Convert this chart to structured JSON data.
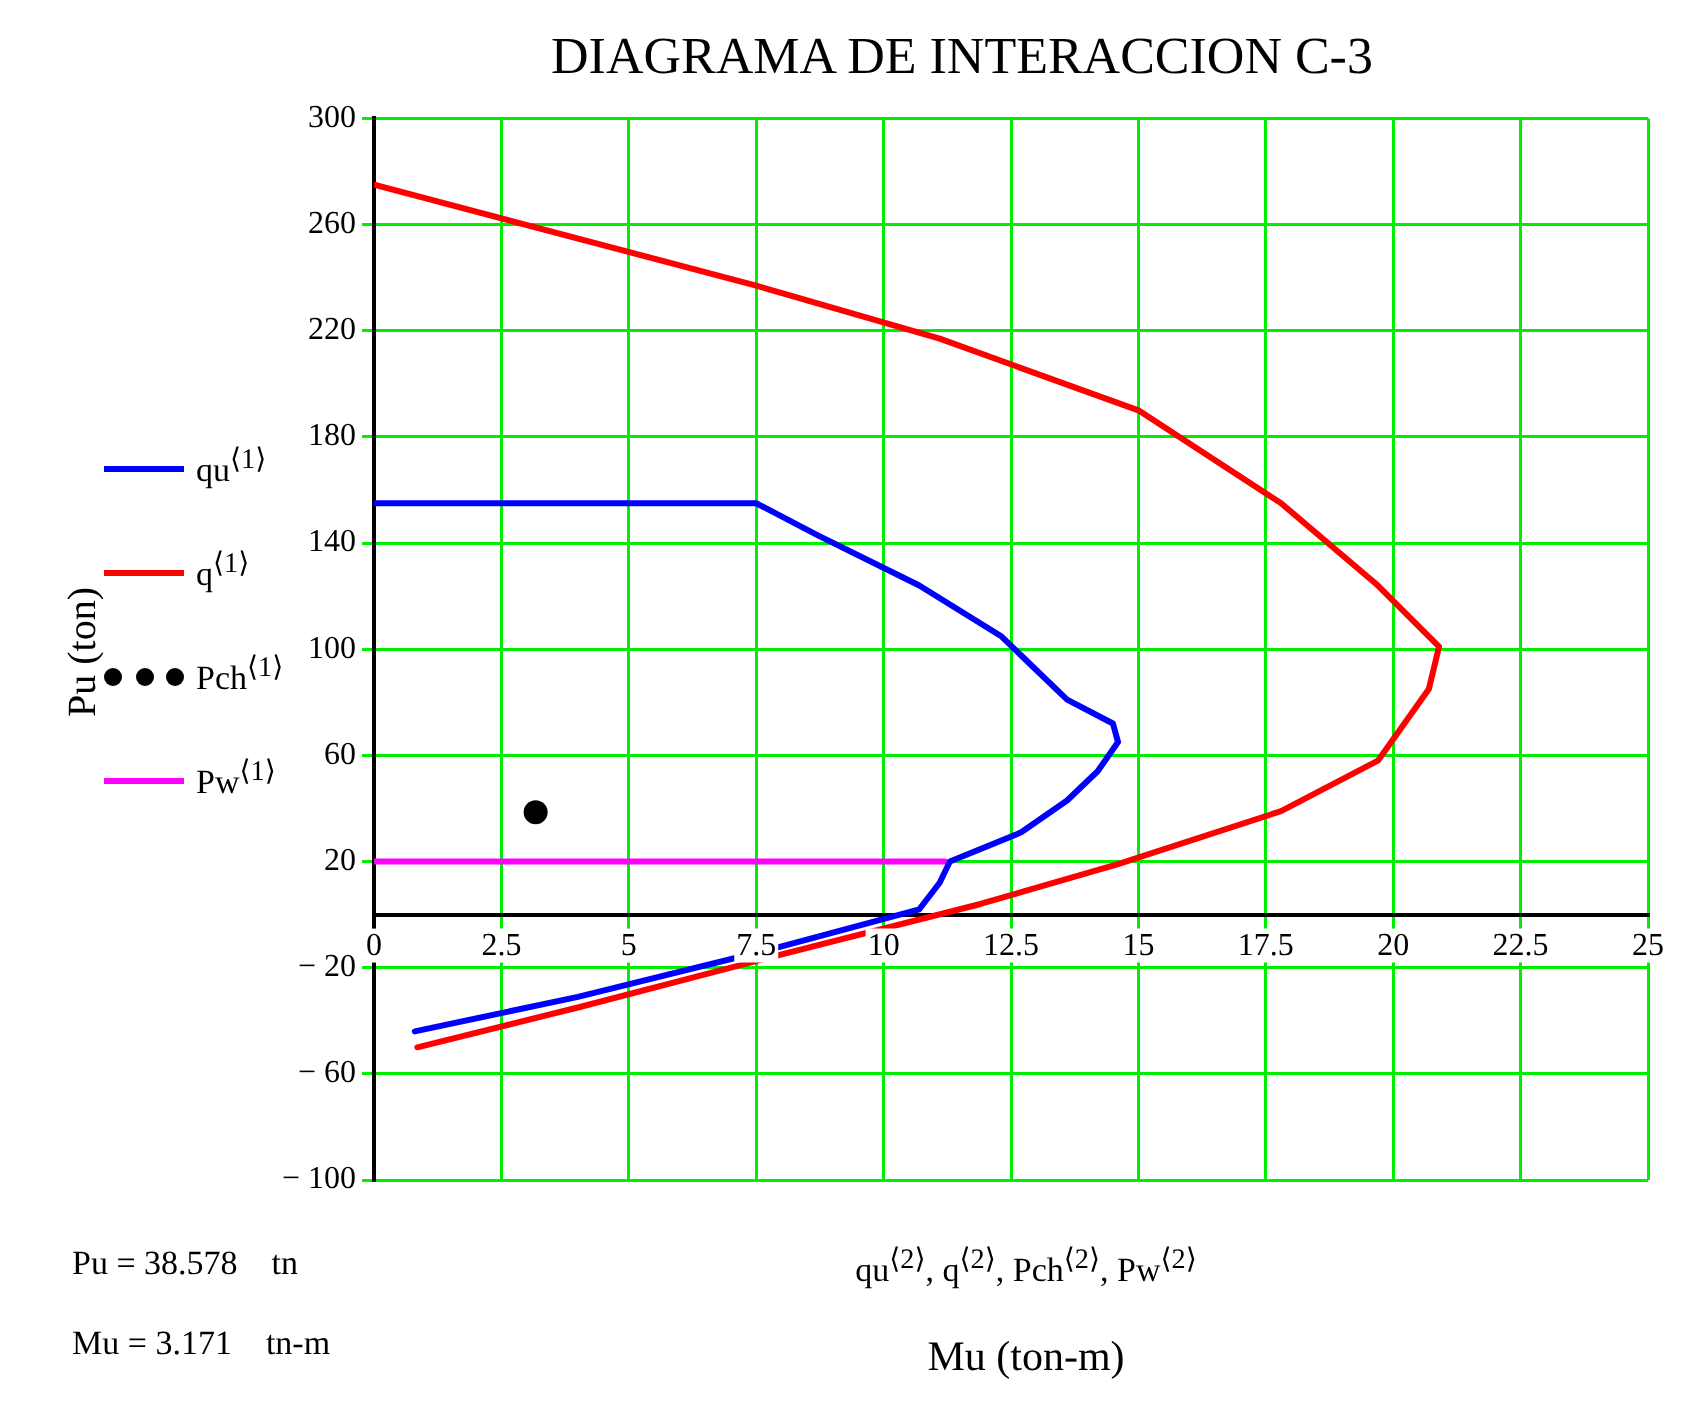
{
  "chart_data": {
    "type": "line",
    "title": "DIAGRAMA DE INTERACCION C-3",
    "xlabel": "Mu (ton-m)",
    "ylabel": "Pu (ton)",
    "annotations": [
      "Pu = 38.578    tn",
      "Mu = 3.171    tn-m",
      "qu$^{⟨2⟩}$, q$^{⟨2⟩}$, Pch$^{⟨2⟩}$, Pw$^{⟨2⟩}$"
    ],
    "xlim": [
      0,
      25
    ],
    "xticks": [
      0,
      2.5,
      5,
      7.5,
      10,
      12.5,
      15,
      17.5,
      20,
      22.5,
      25
    ],
    "ylim": [
      -100,
      300
    ],
    "yticks": [
      {
        "value": -100,
        "label": "− 100"
      },
      {
        "value": -60,
        "label": "− 60"
      },
      {
        "value": -20,
        "label": "− 20"
      },
      20,
      60,
      100,
      140,
      180,
      220,
      260,
      300
    ],
    "grid": true,
    "legend": "left",
    "line_style": "solid",
    "series": [
      {
        "name": "qu$^{⟨1⟩}$",
        "type": "line",
        "color": "#0000ff",
        "x": [
          0.8,
          4,
          8,
          10.7,
          11.1,
          11.3,
          12.7,
          13.6,
          14.2,
          14.6,
          14.5,
          13.6,
          12.3,
          10.7,
          8.7,
          7.5,
          0
        ],
        "values": [
          -44,
          -31,
          -12,
          2,
          12,
          20,
          31,
          43,
          54,
          65,
          72,
          81,
          105,
          124,
          143,
          155,
          155
        ]
      },
      {
        "name": "q$^{⟨1⟩}$",
        "type": "line",
        "color": "#ff0000",
        "x": [
          0.85,
          4,
          8,
          11.9,
          14.6,
          17.8,
          19.7,
          20.7,
          20.9,
          19.7,
          17.8,
          15,
          11.1,
          7.5,
          0
        ],
        "values": [
          -50,
          -35,
          -15,
          4,
          19,
          39,
          58,
          85,
          101,
          124,
          155,
          190,
          217,
          237,
          275
        ]
      },
      {
        "name": "Pch$^{⟨1⟩}$",
        "type": "scatter",
        "marker": "circle",
        "color": "#000000",
        "x": [
          3.171
        ],
        "values": [
          38.578
        ]
      },
      {
        "name": "Pw$^{⟨1⟩}$",
        "type": "line",
        "color": "#ff00ff",
        "x": [
          0,
          11.2
        ],
        "values": [
          20,
          20
        ]
      }
    ]
  }
}
